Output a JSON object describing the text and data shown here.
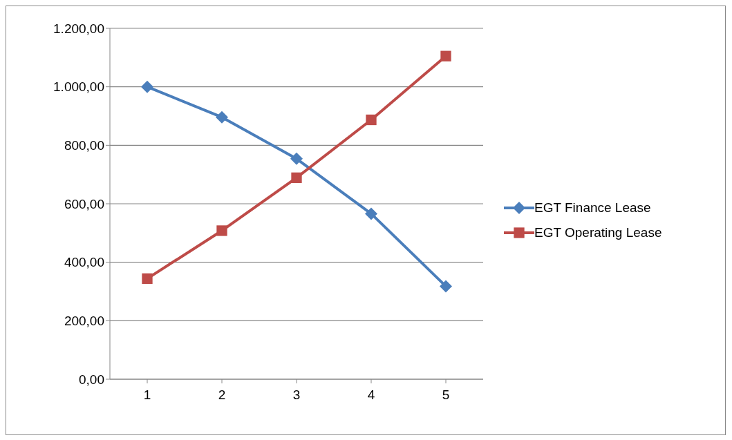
{
  "chart_data": {
    "type": "line",
    "categories": [
      "1",
      "2",
      "3",
      "4",
      "5"
    ],
    "series": [
      {
        "name": "EGT Finance Lease",
        "color": "#4a7ebb",
        "marker": "diamond",
        "values": [
          1000,
          896,
          754,
          566,
          318
        ]
      },
      {
        "name": "EGT Operating Lease",
        "color": "#be4b48",
        "marker": "square",
        "values": [
          344,
          508,
          689,
          887,
          1105
        ]
      }
    ],
    "ylim": [
      0,
      1200
    ],
    "yticks": [
      {
        "value": 0,
        "label": "0,00"
      },
      {
        "value": 200,
        "label": "200,00"
      },
      {
        "value": 400,
        "label": "400,00"
      },
      {
        "value": 600,
        "label": "600,00"
      },
      {
        "value": 800,
        "label": "800,00"
      },
      {
        "value": 1000,
        "label": "1.000,00"
      },
      {
        "value": 1200,
        "label": "1.200,00"
      }
    ],
    "grid": "y",
    "legend": "right"
  }
}
